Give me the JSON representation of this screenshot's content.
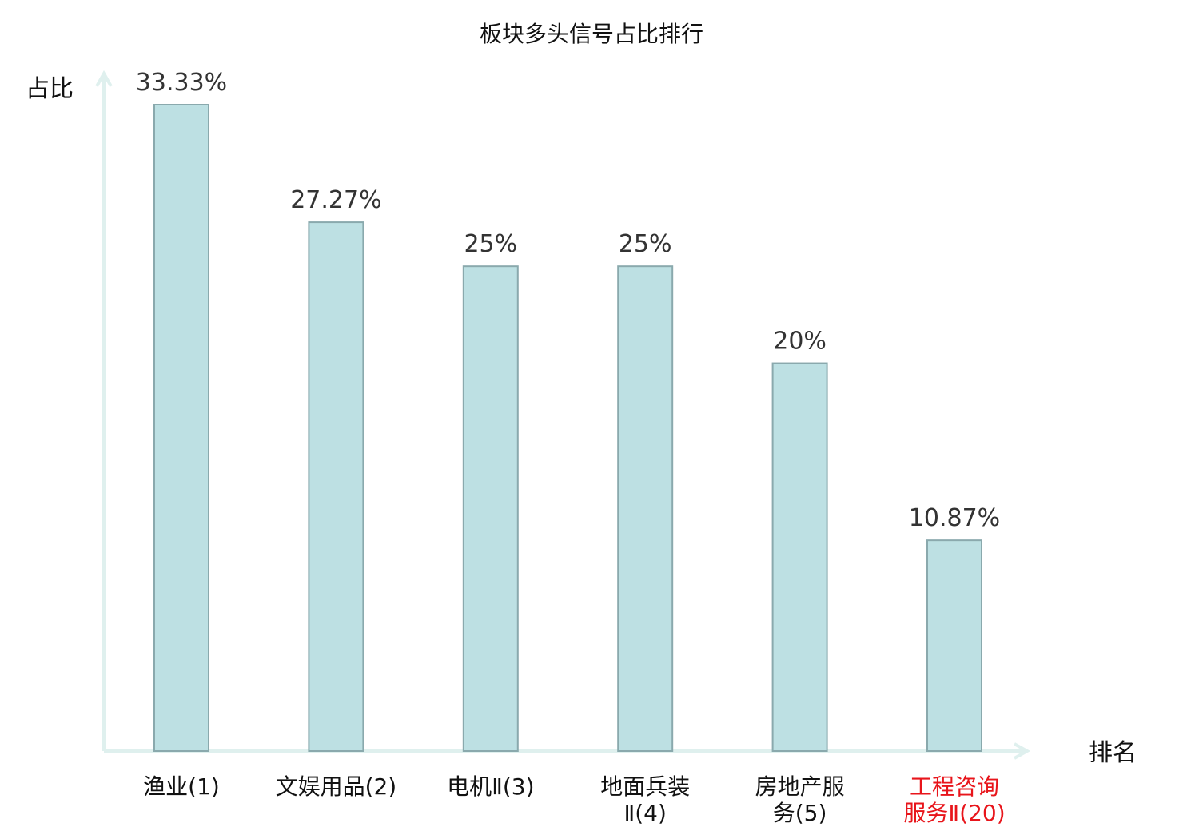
{
  "chart_data": {
    "type": "bar",
    "title": "板块多头信号占比排行",
    "xlabel": "排名",
    "ylabel": "占比",
    "categories": [
      [
        "渔业(1)"
      ],
      [
        "文娱用品(2)"
      ],
      [
        "电机Ⅱ(3)"
      ],
      [
        "地面兵装",
        "Ⅱ(4)"
      ],
      [
        "房地产服",
        "务(5)"
      ],
      [
        "工程咨询",
        "服务Ⅱ(20)"
      ]
    ],
    "values": [
      33.33,
      27.27,
      25,
      25,
      20,
      10.87
    ],
    "value_labels": [
      "33.33%",
      "27.27%",
      "25%",
      "25%",
      "20%",
      "10.87%"
    ],
    "highlight_index": 5,
    "ylim": [
      0,
      33.33
    ],
    "grid": false,
    "legend": "none"
  },
  "colors": {
    "bar_fill": "#bde0e3",
    "bar_stroke": "#8aa9ad",
    "axis": "#dff0ee",
    "text": "#111111",
    "value_text": "#333333",
    "highlight": "#e8151b"
  }
}
